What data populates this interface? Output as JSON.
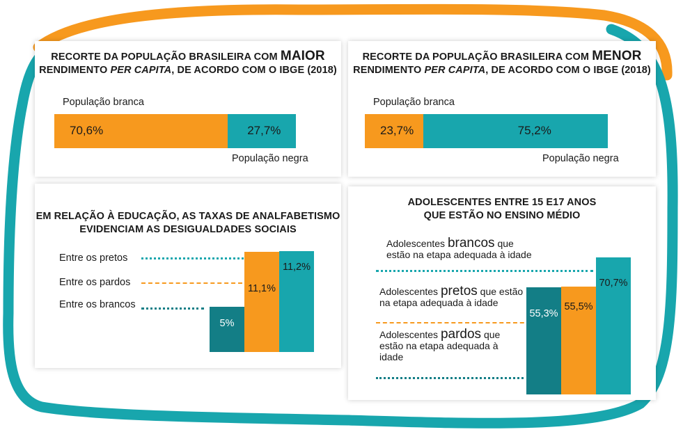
{
  "colors": {
    "orange": "#F7991E",
    "teal": "#18A6AD",
    "dark_teal": "#137E86"
  },
  "chart_data": [
    {
      "type": "bar",
      "orientation": "horizontal-stacked",
      "title_pre": "RECORTE DA POPULAÇÃO BRASILEIRA COM",
      "title_big": "MAIOR",
      "title_line2_pre": "RENDIMENTO",
      "title_line2_em": "PER CAPITA",
      "title_line2_post": ", DE ACORDO COM O IBGE (2018)",
      "series": [
        {
          "name": "População branca",
          "value": 70.6,
          "label": "70,6%",
          "color": "#F7991E"
        },
        {
          "name": "População negra",
          "value": 27.7,
          "label": "27,7%",
          "color": "#18A6AD"
        }
      ]
    },
    {
      "type": "bar",
      "orientation": "horizontal-stacked",
      "title_pre": "RECORTE DA POPULAÇÃO BRASILEIRA COM",
      "title_big": "MENOR",
      "title_line2_pre": "RENDIMENTO",
      "title_line2_em": "PER CAPITA",
      "title_line2_post": ", DE ACORDO COM O IBGE (2018)",
      "series": [
        {
          "name": "População branca",
          "value": 23.7,
          "label": "23,7%",
          "color": "#F7991E"
        },
        {
          "name": "População negra",
          "value": 75.2,
          "label": "75,2%",
          "color": "#18A6AD"
        }
      ]
    },
    {
      "type": "bar",
      "title_line1": "EM RELAÇÃO À EDUCAÇÃO, AS TAXAS DE ANALFABETISMO",
      "title_line2": "EVIDENCIAM AS DESIGUALDADES SOCIAIS",
      "categories": [
        "Entre os brancos",
        "Entre os pardos",
        "Entre os pretos"
      ],
      "values": [
        5,
        11.1,
        11.2
      ],
      "labels": [
        "5%",
        "11,1%",
        "11,2%"
      ],
      "colors": [
        "#137E86",
        "#F7991E",
        "#18A6AD"
      ]
    },
    {
      "type": "bar",
      "title_line1": "ADOLESCENTES ENTRE 15 E17 ANOS",
      "title_line2": "QUE ESTÃO NO ENSINO MÉDIO",
      "categories": [
        {
          "pre": "Adolescentes",
          "em": "pardos",
          "post": "que",
          "line2": "estão na etapa adequada à",
          "line3": "idade"
        },
        {
          "pre": "Adolescentes",
          "em": "pretos",
          "post": "que estão",
          "line2": "na etapa adequada à idade"
        },
        {
          "pre": "Adolescentes",
          "em": "brancos",
          "post": "que",
          "line2": "estão na etapa adequada à idade"
        }
      ],
      "values": [
        55.3,
        55.5,
        70.7
      ],
      "labels": [
        "55,3%",
        "55,5%",
        "70,7%"
      ],
      "colors": [
        "#137E86",
        "#F7991E",
        "#18A6AD"
      ]
    }
  ]
}
